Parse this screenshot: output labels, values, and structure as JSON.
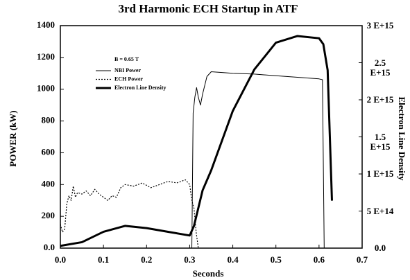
{
  "chart_data": {
    "type": "line",
    "title": "3rd Harmonic ECH Startup in ATF",
    "xlabel": "Seconds",
    "ylabel": "POWER (kW)",
    "y2label": "Electron Line Density",
    "annotation": "B = 0.65 T",
    "xlim": [
      0,
      0.7
    ],
    "xticks": [
      {
        "value": 0,
        "label": "0.0"
      },
      0.1,
      0.2,
      0.3,
      0.4,
      0.5,
      0.6,
      0.7
    ],
    "ylim": [
      0,
      1400
    ],
    "yticks": [
      {
        "value": 0,
        "label": "0.0"
      },
      200,
      400,
      600,
      800,
      1000,
      1200,
      1400
    ],
    "y2lim": [
      0,
      3000000000000000.0
    ],
    "y2ticks": [
      {
        "value": 0,
        "label": "0.0"
      },
      {
        "value": 500000000000000.0,
        "label": "5 E+14"
      },
      {
        "value": 1000000000000000.0,
        "label": "1 E+15"
      },
      {
        "value": 1500000000000000.0,
        "label": "1.5 E+15"
      },
      {
        "value": 2000000000000000.0,
        "label": "2 E+15"
      },
      {
        "value": 2500000000000000.0,
        "label": "2.5 E+15"
      },
      {
        "value": 3000000000000000.0,
        "label": "3 E+15"
      }
    ],
    "series": [
      {
        "name": "NBI Power",
        "color": "#000000",
        "style": "thin",
        "x": [
          0,
          0.305,
          0.308,
          0.312,
          0.316,
          0.32,
          0.325,
          0.33,
          0.34,
          0.35,
          0.4,
          0.45,
          0.5,
          0.55,
          0.6,
          0.608,
          0.612
        ],
        "values": [
          0,
          0,
          850,
          950,
          1010,
          950,
          900,
          970,
          1080,
          1110,
          1100,
          1095,
          1085,
          1075,
          1065,
          1060,
          0
        ]
      },
      {
        "name": "ECH Power",
        "color": "#000000",
        "style": "dashed",
        "x": [
          0,
          0.005,
          0.01,
          0.015,
          0.02,
          0.025,
          0.03,
          0.035,
          0.04,
          0.05,
          0.06,
          0.07,
          0.08,
          0.09,
          0.1,
          0.11,
          0.12,
          0.13,
          0.14,
          0.15,
          0.17,
          0.19,
          0.21,
          0.23,
          0.25,
          0.27,
          0.29,
          0.3,
          0.305,
          0.31,
          0.315,
          0.32
        ],
        "values": [
          150,
          100,
          120,
          280,
          330,
          300,
          390,
          320,
          350,
          340,
          360,
          330,
          370,
          340,
          320,
          300,
          330,
          320,
          380,
          400,
          390,
          410,
          380,
          400,
          420,
          410,
          430,
          400,
          300,
          250,
          100,
          0
        ]
      },
      {
        "name": "Electron Line Density",
        "color": "#000000",
        "style": "thick",
        "axis": "y2",
        "x": [
          0,
          0.05,
          0.1,
          0.15,
          0.2,
          0.25,
          0.3,
          0.31,
          0.33,
          0.35,
          0.4,
          0.45,
          0.5,
          0.55,
          0.6,
          0.61,
          0.62,
          0.63
        ],
        "values": [
          30000000000000.0,
          80000000000000.0,
          220000000000000.0,
          300000000000000.0,
          270000000000000.0,
          220000000000000.0,
          170000000000000.0,
          300000000000000.0,
          780000000000000.0,
          1050000000000000.0,
          1850000000000000.0,
          2410000000000000.0,
          2770000000000000.0,
          2860000000000000.0,
          2830000000000000.0,
          2750000000000000.0,
          2400000000000000.0,
          640000000000000.0
        ]
      }
    ]
  }
}
